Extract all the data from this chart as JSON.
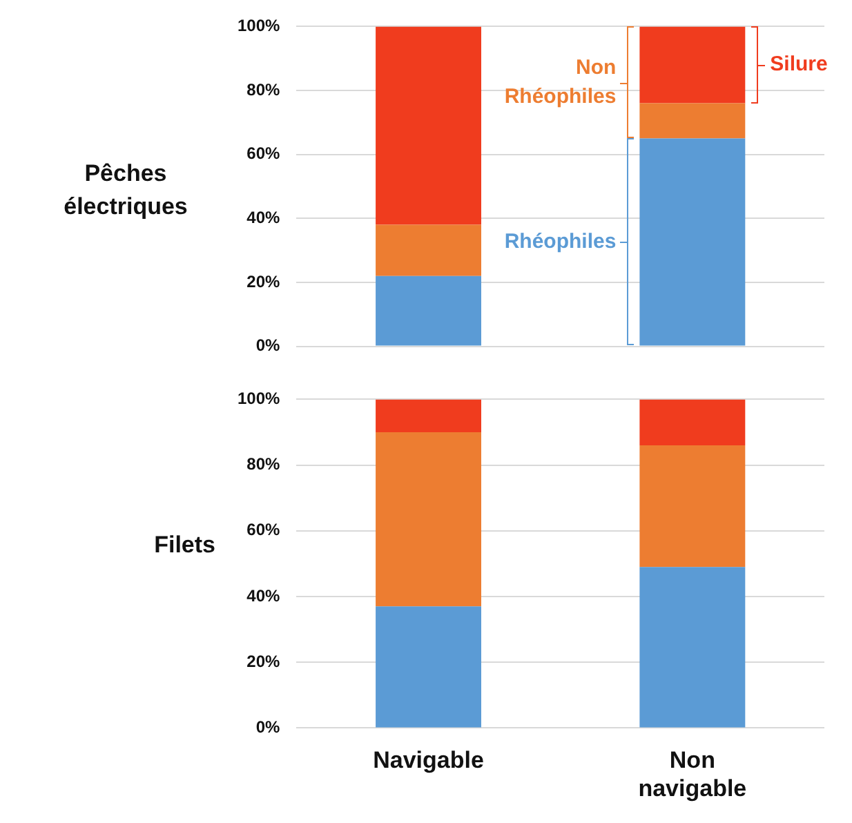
{
  "chart_data": [
    {
      "type": "bar",
      "stacked": true,
      "ylabel": "Pêches électriques",
      "categories": [
        null,
        null
      ],
      "tick_labels": "y",
      "legend": "right",
      "grid": "y",
      "ylim": [
        0,
        100
      ],
      "yticks": [
        {
          "value": 0,
          "label": "0%"
        },
        {
          "value": 20,
          "label": "20%"
        },
        {
          "value": 40,
          "label": "40%"
        },
        {
          "value": 60,
          "label": "60%"
        },
        {
          "value": 80,
          "label": "80%"
        },
        {
          "value": 100,
          "label": "100%"
        }
      ],
      "series": [
        {
          "name": "Rhéophiles",
          "color": "#5b9bd5",
          "values": [
            22,
            65
          ]
        },
        {
          "name": "Non Rhéophiles",
          "color": "#ed7d31",
          "values": [
            16,
            11
          ]
        },
        {
          "name": "Silure",
          "color": "#f03c1e",
          "values": [
            62,
            24
          ]
        }
      ]
    },
    {
      "type": "bar",
      "stacked": true,
      "ylabel": "Filets",
      "categories": [
        "Navigable",
        "Non navigable"
      ],
      "grid": "y",
      "ylim": [
        0,
        100
      ],
      "yticks": [
        {
          "value": 0,
          "label": "0%"
        },
        {
          "value": 20,
          "label": "20%"
        },
        {
          "value": 40,
          "label": "40%"
        },
        {
          "value": 60,
          "label": "60%"
        },
        {
          "value": 80,
          "label": "80%"
        },
        {
          "value": 100,
          "label": "100%"
        }
      ],
      "series": [
        {
          "color": "#5b9bd5",
          "values": [
            37,
            49
          ]
        },
        {
          "color": "#ed7d31",
          "values": [
            53,
            37
          ]
        },
        {
          "color": "#f03c1e",
          "values": [
            10,
            14
          ]
        }
      ]
    }
  ]
}
